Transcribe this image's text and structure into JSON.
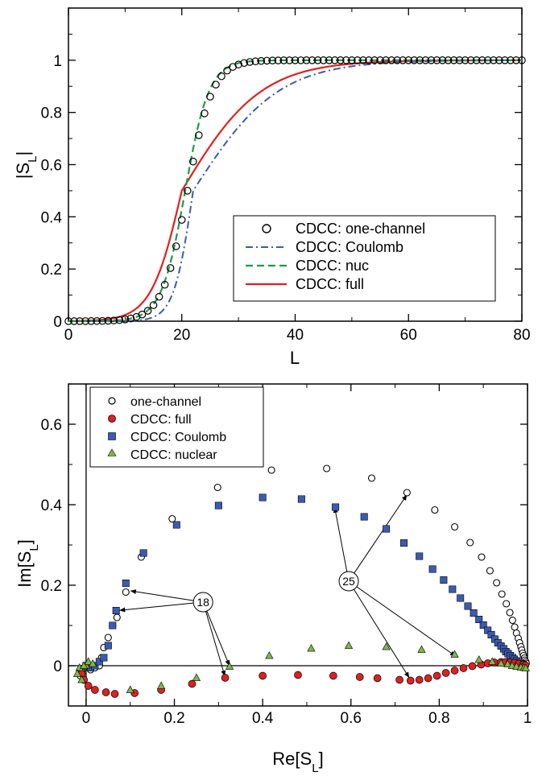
{
  "chart_data": [
    {
      "type": "line",
      "xlabel": "L",
      "ylabel": "|S_L|",
      "xlim": [
        0,
        80
      ],
      "ylim": [
        0,
        1.2
      ],
      "xticks": [
        "0",
        "20",
        "40",
        "60",
        "80"
      ],
      "yticks": [
        "0",
        "0.2",
        "0.4",
        "0.6",
        "0.8",
        "1"
      ],
      "grid": false,
      "legend_position": "bottom-right",
      "colors": {
        "one_channel": "#000000",
        "coulomb": "#3b5bb3",
        "nuc": "#1e9a4a",
        "full": "#e02020"
      },
      "series": [
        {
          "name": "CDCC: one-channel",
          "style": "open-circle",
          "model": {
            "kind": "fermi",
            "l0": 21.0,
            "a": 2.2
          }
        },
        {
          "name": "CDCC: Coulomb",
          "style": "dash-dot",
          "model": {
            "kind": "asym",
            "l0": 22.0,
            "a_low": 1.7,
            "a_high": 7.5
          }
        },
        {
          "name": "CDCC: nuc",
          "style": "dashed",
          "model": {
            "kind": "fermi",
            "l0": 20.6,
            "a": 2.1
          }
        },
        {
          "name": "CDCC: full",
          "style": "solid",
          "model": {
            "kind": "asym",
            "l0": 20.0,
            "a_low": 2.7,
            "a_high": 7.0
          }
        }
      ]
    },
    {
      "type": "scatter",
      "xlabel": "Re[S_L]",
      "ylabel": "Im[S_L]",
      "xlim": [
        -0.04,
        1.0
      ],
      "ylim": [
        -0.1,
        0.7
      ],
      "xticks": [
        "0",
        "0.2",
        "0.4",
        "0.6",
        "0.8",
        "1"
      ],
      "yticks": [
        "0",
        "0.2",
        "0.4",
        "0.6"
      ],
      "grid": false,
      "legend_position": "top-left",
      "colors": {
        "one_channel": "#000000",
        "full": "#e02020",
        "coulomb": "#3b5bb3",
        "nuclear": "#7cb94a"
      },
      "series": [
        {
          "name": "one-channel",
          "marker": "open-circle",
          "points": [
            [
              0.0,
              0.0
            ],
            [
              -0.005,
              -0.005
            ],
            [
              -0.01,
              -0.015
            ],
            [
              -0.013,
              -0.025
            ],
            [
              0.01,
              -0.01
            ],
            [
              0.02,
              -0.005
            ],
            [
              0.03,
              0.0
            ],
            [
              0.035,
              0.02
            ],
            [
              0.04,
              0.045
            ],
            [
              0.05,
              0.07
            ],
            [
              0.06,
              0.1
            ],
            [
              0.07,
              0.12
            ],
            [
              0.09,
              0.183
            ],
            [
              0.125,
              0.27
            ],
            [
              0.195,
              0.365
            ],
            [
              0.298,
              0.443
            ],
            [
              0.42,
              0.486
            ],
            [
              0.545,
              0.49
            ],
            [
              0.647,
              0.466
            ],
            [
              0.727,
              0.43
            ],
            [
              0.79,
              0.387
            ],
            [
              0.835,
              0.345
            ],
            [
              0.87,
              0.306
            ],
            [
              0.896,
              0.27
            ],
            [
              0.915,
              0.236
            ],
            [
              0.93,
              0.206
            ],
            [
              0.942,
              0.178
            ],
            [
              0.952,
              0.154
            ],
            [
              0.96,
              0.132
            ],
            [
              0.966,
              0.113
            ],
            [
              0.971,
              0.096
            ],
            [
              0.975,
              0.081
            ],
            [
              0.979,
              0.068
            ],
            [
              0.982,
              0.057
            ],
            [
              0.985,
              0.047
            ],
            [
              0.987,
              0.039
            ],
            [
              0.989,
              0.031
            ],
            [
              0.991,
              0.025
            ],
            [
              0.993,
              0.019
            ],
            [
              0.994,
              0.014
            ],
            [
              0.996,
              0.01
            ],
            [
              0.997,
              0.006
            ]
          ]
        },
        {
          "name": "CDCC: full",
          "marker": "filled-circle",
          "points": [
            [
              0.0,
              0.0
            ],
            [
              -0.01,
              -0.02
            ],
            [
              -0.005,
              -0.035
            ],
            [
              0.005,
              -0.05
            ],
            [
              0.02,
              -0.06
            ],
            [
              0.045,
              -0.066
            ],
            [
              0.065,
              -0.07
            ],
            [
              0.11,
              -0.068
            ],
            [
              0.17,
              -0.06
            ],
            [
              0.24,
              -0.045
            ],
            [
              0.315,
              -0.03
            ],
            [
              0.4,
              -0.025
            ],
            [
              0.48,
              -0.023
            ],
            [
              0.56,
              -0.025
            ],
            [
              0.62,
              -0.028
            ],
            [
              0.66,
              -0.031
            ],
            [
              0.71,
              -0.035
            ],
            [
              0.735,
              -0.037
            ],
            [
              0.755,
              -0.035
            ],
            [
              0.775,
              -0.031
            ],
            [
              0.795,
              -0.025
            ],
            [
              0.815,
              -0.018
            ],
            [
              0.835,
              -0.012
            ],
            [
              0.855,
              -0.006
            ],
            [
              0.875,
              -0.001
            ],
            [
              0.895,
              0.003
            ],
            [
              0.91,
              0.006
            ],
            [
              0.925,
              0.008
            ],
            [
              0.94,
              0.009
            ],
            [
              0.95,
              0.009
            ],
            [
              0.96,
              0.008
            ],
            [
              0.97,
              0.007
            ],
            [
              0.98,
              0.005
            ],
            [
              0.99,
              0.003
            ],
            [
              0.995,
              0.001
            ]
          ]
        },
        {
          "name": "CDCC: Coulomb",
          "marker": "filled-square",
          "points": [
            [
              0.0,
              0.0
            ],
            [
              0.01,
              -0.005
            ],
            [
              0.02,
              0.0
            ],
            [
              0.03,
              0.01
            ],
            [
              0.04,
              0.02
            ],
            [
              0.05,
              0.05
            ],
            [
              0.06,
              0.1
            ],
            [
              0.068,
              0.137
            ],
            [
              0.09,
              0.205
            ],
            [
              0.13,
              0.28
            ],
            [
              0.205,
              0.35
            ],
            [
              0.3,
              0.398
            ],
            [
              0.4,
              0.418
            ],
            [
              0.488,
              0.414
            ],
            [
              0.565,
              0.394
            ],
            [
              0.63,
              0.37
            ],
            [
              0.68,
              0.34
            ],
            [
              0.72,
              0.305
            ],
            [
              0.755,
              0.272
            ],
            [
              0.785,
              0.24
            ],
            [
              0.81,
              0.213
            ],
            [
              0.83,
              0.19
            ],
            [
              0.848,
              0.168
            ],
            [
              0.865,
              0.148
            ],
            [
              0.878,
              0.131
            ],
            [
              0.89,
              0.115
            ],
            [
              0.9,
              0.101
            ],
            [
              0.91,
              0.088
            ],
            [
              0.918,
              0.077
            ],
            [
              0.926,
              0.066
            ],
            [
              0.933,
              0.057
            ],
            [
              0.94,
              0.049
            ],
            [
              0.946,
              0.042
            ],
            [
              0.951,
              0.035
            ],
            [
              0.956,
              0.03
            ],
            [
              0.961,
              0.025
            ],
            [
              0.966,
              0.02
            ],
            [
              0.97,
              0.016
            ],
            [
              0.975,
              0.012
            ],
            [
              0.98,
              0.008
            ],
            [
              0.985,
              0.005
            ],
            [
              0.99,
              0.003
            ]
          ]
        },
        {
          "name": "CDCC: nuclear",
          "marker": "filled-triangle",
          "points": [
            [
              0.0,
              0.0
            ],
            [
              -0.015,
              -0.005
            ],
            [
              -0.02,
              -0.02
            ],
            [
              -0.01,
              -0.035
            ],
            [
              -0.005,
              0.0
            ],
            [
              0.005,
              0.01
            ],
            [
              0.015,
              0.005
            ],
            [
              0.1,
              -0.06
            ],
            [
              0.17,
              -0.05
            ],
            [
              0.25,
              -0.03
            ],
            [
              0.325,
              -0.002
            ],
            [
              0.415,
              0.025
            ],
            [
              0.51,
              0.043
            ],
            [
              0.595,
              0.05
            ],
            [
              0.68,
              0.047
            ],
            [
              0.76,
              0.04
            ],
            [
              0.835,
              0.028
            ],
            [
              0.89,
              0.015
            ],
            [
              0.92,
              0.01
            ],
            [
              0.94,
              0.006
            ],
            [
              0.955,
              0.004
            ],
            [
              0.965,
              0.0
            ],
            [
              0.975,
              -0.002
            ],
            [
              0.985,
              -0.004
            ],
            [
              0.992,
              -0.005
            ],
            [
              0.996,
              -0.006
            ]
          ]
        }
      ],
      "annotations": [
        {
          "text": "18",
          "at": [
            0.265,
            0.158
          ],
          "targets": [
            [
              0.095,
              0.187
            ],
            [
              0.07,
              0.137
            ],
            [
              0.316,
              -0.032
            ],
            [
              0.327,
              -0.006
            ]
          ]
        },
        {
          "text": "25",
          "at": [
            0.595,
            0.21
          ],
          "targets": [
            [
              0.73,
              0.43
            ],
            [
              0.562,
              0.4
            ],
            [
              0.735,
              -0.035
            ],
            [
              0.842,
              0.02
            ]
          ]
        }
      ]
    }
  ]
}
